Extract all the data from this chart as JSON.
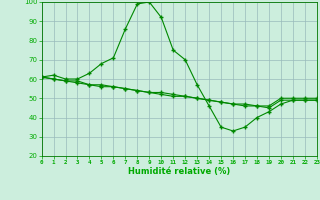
{
  "x": [
    0,
    1,
    2,
    3,
    4,
    5,
    6,
    7,
    8,
    9,
    10,
    11,
    12,
    13,
    14,
    15,
    16,
    17,
    18,
    19,
    20,
    21,
    22,
    23
  ],
  "line1": [
    61,
    62,
    60,
    60,
    63,
    68,
    71,
    86,
    99,
    100,
    92,
    75,
    70,
    57,
    46,
    35,
    33,
    35,
    40,
    43,
    47,
    49,
    49,
    49
  ],
  "line2": [
    61,
    60,
    59,
    58,
    57,
    57,
    56,
    55,
    54,
    53,
    53,
    52,
    51,
    50,
    49,
    48,
    47,
    47,
    46,
    46,
    50,
    50,
    50,
    50
  ],
  "line3": [
    61,
    60,
    59,
    59,
    57,
    56,
    56,
    55,
    54,
    53,
    52,
    51,
    51,
    50,
    49,
    48,
    47,
    46,
    46,
    45,
    49,
    49,
    49,
    49
  ],
  "line_color": "#008800",
  "bg_color": "#cceedd",
  "grid_color": "#99bbbb",
  "xlabel": "Humidité relative (%)",
  "ylim": [
    20,
    100
  ],
  "xlim": [
    0,
    23
  ],
  "yticks": [
    20,
    30,
    40,
    50,
    60,
    70,
    80,
    90,
    100
  ],
  "xticks": [
    0,
    1,
    2,
    3,
    4,
    5,
    6,
    7,
    8,
    9,
    10,
    11,
    12,
    13,
    14,
    15,
    16,
    17,
    18,
    19,
    20,
    21,
    22,
    23
  ],
  "tick_color": "#00aa00",
  "xlabel_color": "#00aa00"
}
